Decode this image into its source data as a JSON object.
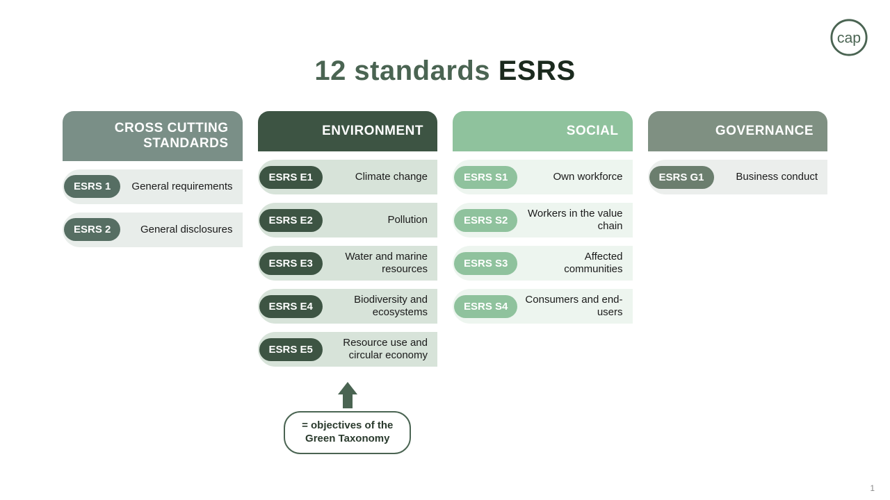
{
  "title_word1": "12 standards",
  "title_word2": "ESRS",
  "logo_text": "cap",
  "page_number": "1",
  "callout_text": "= objectives of the\nGreen Taxonomy",
  "colors": {
    "title_light": "#4a6452",
    "title_dark": "#1b2a1e",
    "background": "#ffffff",
    "arrow": "#4a6452",
    "callout_border": "#4a6452",
    "callout_text": "#2a3a2d",
    "page_num": "#888888",
    "logo_stroke": "#4a6452"
  },
  "columns": [
    {
      "header": "CROSS CUTTING STANDARDS",
      "header_bg": "#7a8f87",
      "pill_bg": "#566e63",
      "item_bg": "#e8edea",
      "items": [
        {
          "code": "ESRS 1",
          "label": "General requirements"
        },
        {
          "code": "ESRS 2",
          "label": "General disclosures"
        }
      ]
    },
    {
      "header": "ENVIRONMENT",
      "header_bg": "#3d5443",
      "pill_bg": "#3d5443",
      "item_bg": "#d7e3d9",
      "items": [
        {
          "code": "ESRS E1",
          "label": "Climate change"
        },
        {
          "code": "ESRS E2",
          "label": "Pollution"
        },
        {
          "code": "ESRS E3",
          "label": "Water and marine resources"
        },
        {
          "code": "ESRS E4",
          "label": "Biodiversity and ecosystems"
        },
        {
          "code": "ESRS E5",
          "label": "Resource use and circular economy"
        }
      ],
      "has_callout": true
    },
    {
      "header": "SOCIAL",
      "header_bg": "#8fc29d",
      "pill_bg": "#8fc29d",
      "item_bg": "#edf5ef",
      "items": [
        {
          "code": "ESRS S1",
          "label": "Own workforce"
        },
        {
          "code": "ESRS S2",
          "label": "Workers in the value chain"
        },
        {
          "code": "ESRS S3",
          "label": "Affected communities"
        },
        {
          "code": "ESRS S4",
          "label": "Consumers and end-users"
        }
      ]
    },
    {
      "header": "GOVERNANCE",
      "header_bg": "#7f9082",
      "pill_bg": "#6b7e6e",
      "item_bg": "#ebeeec",
      "items": [
        {
          "code": "ESRS G1",
          "label": "Business conduct"
        }
      ]
    }
  ]
}
